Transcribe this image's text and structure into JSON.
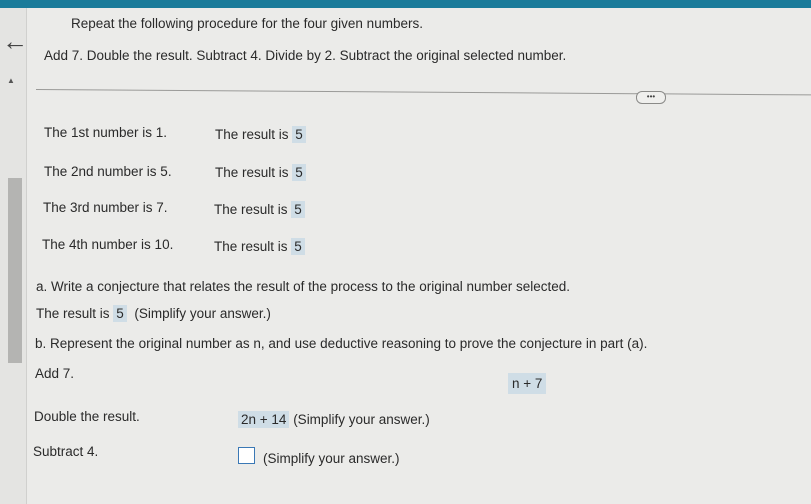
{
  "header": {
    "instructions": "Repeat the following procedure for the four given numbers.",
    "procedure": "Add 7. Double the result. Subtract 4. Divide by 2. Subtract the original selected number.",
    "more_label": "•••"
  },
  "rows": [
    {
      "label": "The 1st number is 1.",
      "result_label": "The result is",
      "result": "5"
    },
    {
      "label": "The 2nd number is 5.",
      "result_label": "The result is",
      "result": "5"
    },
    {
      "label": "The 3rd number is 7.",
      "result_label": "The result is",
      "result": "5"
    },
    {
      "label": "The 4th number is 10.",
      "result_label": "The result is",
      "result": "5"
    }
  ],
  "part_a": {
    "prompt": "a. Write a conjecture that relates the result of the process to the original number selected.",
    "prefix": "The result is",
    "answer": "5",
    "hint": "(Simplify your answer.)"
  },
  "part_b": {
    "prompt": "b. Represent the original number as n, and use deductive reasoning to prove the conjecture in part (a).",
    "steps": [
      {
        "label": "Add 7.",
        "answer": "n + 7",
        "hint": ""
      },
      {
        "label": "Double the result.",
        "answer": "2n + 14",
        "hint": "(Simplify your answer.)"
      },
      {
        "label": "Subtract 4.",
        "answer": "",
        "hint": "(Simplify your answer.)"
      }
    ]
  }
}
